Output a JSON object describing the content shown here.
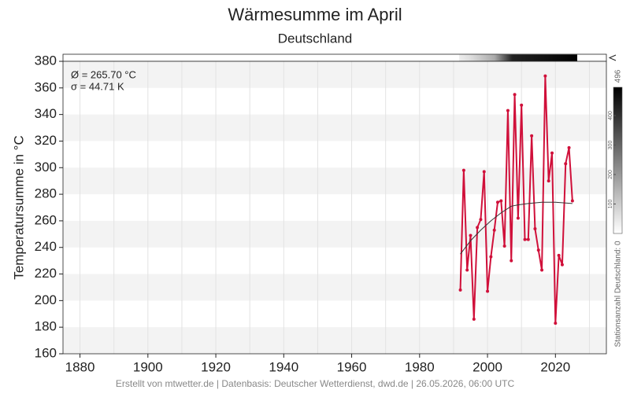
{
  "chart_data": {
    "type": "line",
    "title": "Wärmesumme im April",
    "subtitle": "Deutschland",
    "y_label": "Temperatursumme in °C",
    "annotations": [
      "Ø = 265.70 °C",
      "σ = 44.71 K"
    ],
    "footer": "Erstellt von mtwetter.de | Datenbasis: Deutscher Wetterdienst, dwd.de | 26.05.2026, 06:00 UTC",
    "x": [
      1992,
      1993,
      1994,
      1995,
      1996,
      1997,
      1998,
      1999,
      2000,
      2001,
      2002,
      2003,
      2004,
      2005,
      2006,
      2007,
      2008,
      2009,
      2010,
      2011,
      2012,
      2013,
      2014,
      2015,
      2016,
      2017,
      2018,
      2019,
      2020,
      2021,
      2022,
      2023,
      2024,
      2025
    ],
    "series": [
      {
        "color": "#d0103a",
        "values": [
          208,
          298,
          223,
          249,
          186,
          255,
          261,
          297,
          207,
          233,
          253,
          274,
          275,
          241,
          343,
          230,
          355,
          262,
          347,
          246,
          246,
          324,
          254,
          238,
          223,
          369,
          290,
          311,
          183,
          234,
          227,
          303,
          315,
          275
        ]
      },
      {
        "color": "#333333",
        "x": [
          1992,
          1995,
          1998,
          2001,
          2004,
          2007,
          2009,
          2012,
          2016,
          2020,
          2025
        ],
        "values": [
          235,
          245,
          253,
          260,
          266,
          271,
          272,
          273,
          274,
          274,
          273
        ]
      }
    ],
    "xlim": [
      1875,
      2035
    ],
    "xticks": [
      1880,
      1900,
      1920,
      1940,
      1960,
      1980,
      2000,
      2020
    ],
    "xgrid": [
      1880,
      1890,
      1900,
      1910,
      1920,
      1930,
      1940,
      1950,
      1960,
      1970,
      1980,
      1990,
      2000,
      2010,
      2020,
      2030
    ],
    "ylim": [
      160,
      380
    ],
    "yticks": [
      160,
      180,
      200,
      220,
      240,
      260,
      280,
      300,
      320,
      340,
      360,
      380
    ],
    "colorbar": {
      "label": "Stationsanzahl Deutschland: 0",
      "max_label": "496",
      "lim": [
        0,
        496
      ],
      "ticks": [
        100,
        200,
        300,
        400
      ]
    }
  }
}
